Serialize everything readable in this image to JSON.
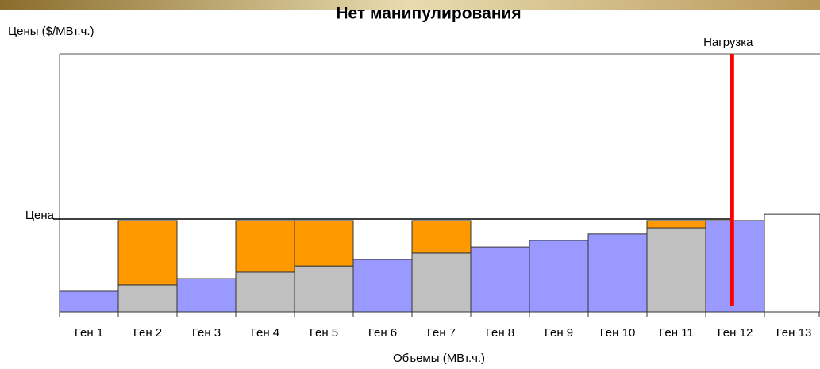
{
  "chart_data": {
    "type": "bar",
    "stacked": true,
    "title": "Нет  манипулирования",
    "y_label": "Цены ($/МВт.ч.)",
    "x_label": "Объемы (МВт.ч.)",
    "categories": [
      "Ген 1",
      "Ген 2",
      "Ген 3",
      "Ген 4",
      "Ген 5",
      "Ген 6",
      "Ген 7",
      "Ген 8",
      "Ген 9",
      "Ген 10",
      "Ген 11",
      "Ген 12",
      "Ген 13"
    ],
    "series": [
      {
        "color": "#9999ff",
        "values": [
          8,
          null,
          12.9,
          null,
          null,
          20.3,
          null,
          25.2,
          27.7,
          30.2,
          null,
          35.4,
          null
        ]
      },
      {
        "color": "#c0c0c0",
        "values": [
          null,
          10.5,
          null,
          15.4,
          17.8,
          null,
          22.8,
          null,
          null,
          null,
          32.6,
          null,
          null
        ]
      },
      {
        "color": "#ff9900",
        "values": [
          null,
          24.9,
          null,
          20,
          17.6,
          null,
          12.6,
          null,
          null,
          null,
          2.8,
          null,
          null
        ]
      },
      {
        "color": "#ffffff",
        "values": [
          null,
          null,
          null,
          null,
          null,
          null,
          null,
          null,
          null,
          null,
          null,
          null,
          37.8
        ]
      }
    ],
    "ylim": [
      0,
      100
    ],
    "price_line": {
      "label": "Цена",
      "value": 36
    },
    "load_line": {
      "label": "Нагрузка",
      "x": 11.45,
      "color": "#ff0000"
    }
  }
}
